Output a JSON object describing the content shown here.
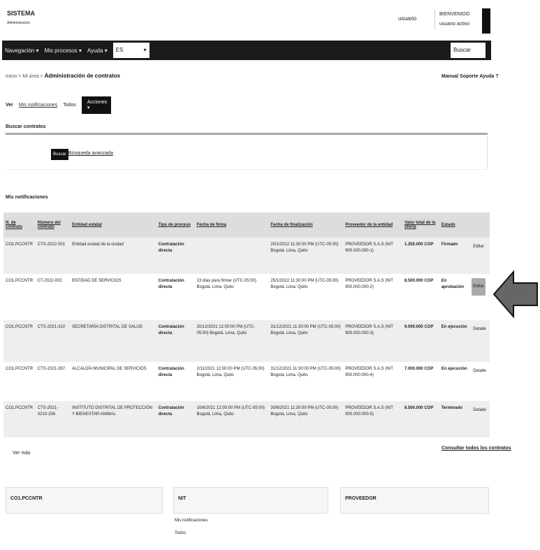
{
  "header": {
    "logo": "SISTEMA",
    "logo_sub": "Administración",
    "user_label": "usuario",
    "user_top": "BIENVENIDO",
    "user_name": "usuario activo"
  },
  "nav": {
    "items": [
      "Navegación ▾",
      "Mis procesos ▾",
      "Ayuda ▾"
    ],
    "select": "ES",
    "search_placeholder": "Buscar"
  },
  "breadcrumb": {
    "path": "Inicio > Mi área >",
    "current": "Administración de contratos"
  },
  "help_links": "Manual Soporte Ayuda ?",
  "tabs": {
    "items": [
      "Ver",
      "Mis notificaciones",
      "Todos"
    ],
    "dropdown": "Acciones"
  },
  "search": {
    "title": "Buscar contratos",
    "button": "Buscar",
    "advanced": "Búsqueda avanzada"
  },
  "notifications_title": "Mis notificaciones",
  "table": {
    "headers": [
      "N. de contrato",
      "Número del contrato",
      "Entidad estatal",
      "Tipo de proceso",
      "Fecha de firma",
      "Fecha de finalización",
      "Proveedor de la entidad",
      "Valor total de la oferta",
      "Estado",
      ""
    ],
    "rows": [
      [
        "CO1.PCCNTR",
        "CTS-2022-001",
        "Entidad estatal de la ciudad",
        "Contratación directa",
        "",
        "20/1/2022 11:30:00 PM (UTC-05:00) Bogotá, Lima, Quito",
        "PROVEEDOR S.A.S (NIT 900.000.000-1)",
        "1.250.000 COP",
        "Firmado",
        "Editar"
      ],
      [
        "CO1.PCCNTR",
        "CT-2022-002",
        "ENTIDAD DE SERVICIOS",
        "Contratación directa",
        "13 días para firmar (UTC-05:00) Bogotá, Lima, Quito",
        "25/1/2022 11:30:00 PM (UTC-05:00) Bogotá, Lima, Quito",
        "PROVEEDOR S.A.S (NIT 900.000.000-2)",
        "8.500.000 COP",
        "En aprobación",
        "Editar"
      ],
      [
        "CO1.PCCNTR",
        "CTS-2021-310",
        "SECRETARÍA DISTRITAL DE SALUD",
        "Contratación directa",
        "20/12/2021 12:00:00 PM (UTC-05:00) Bogotá, Lima, Quito",
        "31/12/2021 11:30:00 PM (UTC-05:00) Bogotá, Lima, Quito",
        "PROVEEDOR S.A.S (NIT 900.000.000-3)",
        "9.000.000 COP",
        "En ejecución",
        "Detalle"
      ],
      [
        "CO1.PCCNTR",
        "CTS-2021-287",
        "ALCALDÍA MUNICIPAL DE SERVICIOS",
        "Contratación directa",
        "2/11/2021 12:00:00 PM (UTC-05:00) Bogotá, Lima, Quito",
        "31/12/2021 11:30:00 PM (UTC-05:00) Bogotá, Lima, Quito",
        "PROVEEDOR S.A.S (NIT 900.000.000-4)",
        "7.000.000 COP",
        "En ejecución",
        "Detalle"
      ],
      [
        "CO1.PCCNTR",
        "CTS-2021-0210-256",
        "INSTITUTO DISTRITAL DE PROTECCIÓN Y BIENESTAR ANIMAL",
        "Contratación directa",
        "10/6/2021 12:00:00 PM (UTC-05:00) Bogotá, Lima, Quito",
        "30/6/2021 11:30:00 PM (UTC-05:00) Bogotá, Lima, Quito",
        "PROVEEDOR S.A.S (NIT 900.000.000-5)",
        "6.500.000 COP",
        "Terminado",
        "Detalle"
      ]
    ]
  },
  "footer": {
    "more": "Ver más",
    "all_link": "Consultar todos los contratos",
    "boxes": [
      "CO1.PCCNTR",
      "NIT",
      "PROVEEDOR"
    ],
    "links": [
      "Mis notificaciones",
      "Todos"
    ]
  },
  "colors": {
    "nav": "#1a1a1a",
    "table_header": "#dddddd",
    "arrow": "#666666"
  }
}
